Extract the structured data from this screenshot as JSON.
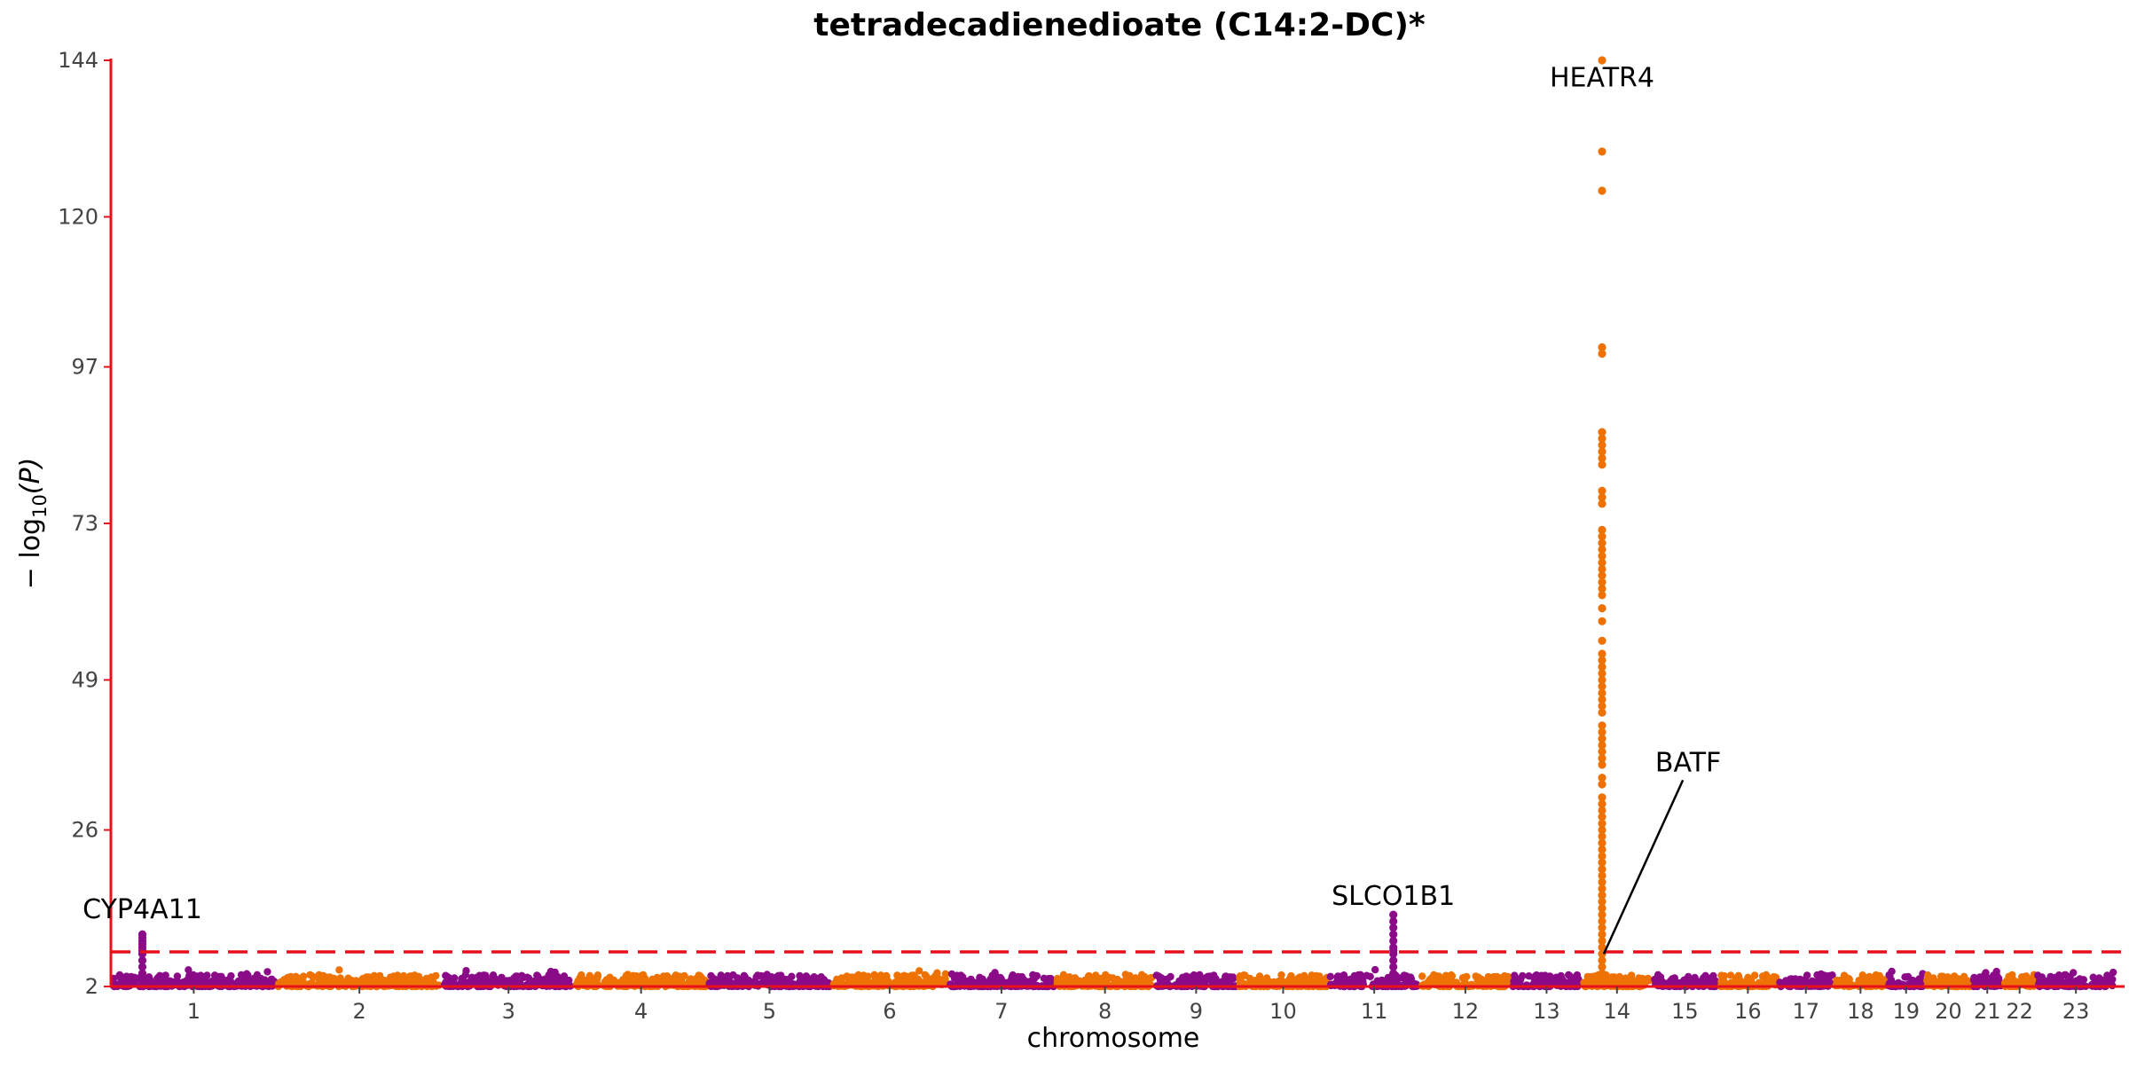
{
  "chart_data": {
    "type": "scatter",
    "subtype": "manhattan",
    "title": "tetradecadienedioate (C14:2-DC)*",
    "xlabel": "chromosome",
    "ylabel_main": "− log",
    "ylabel_sub": "10",
    "ylabel_tail": "(P)",
    "yticks": [
      2,
      26,
      49,
      73,
      97,
      120,
      144
    ],
    "ylim": [
      2,
      144
    ],
    "significance_threshold": 7.3,
    "grid": false,
    "legend": "none",
    "colors": {
      "odd_chromosome": "#8B0A88",
      "even_chromosome": "#EE7203",
      "axis_line": "#E8101A",
      "threshold_line": "#E8101A",
      "annotation_line": "#000000"
    },
    "chromosomes": [
      {
        "label": "1",
        "range": [
          0.0,
          1.0
        ]
      },
      {
        "label": "2",
        "range": [
          1.0,
          2.0
        ]
      },
      {
        "label": "3",
        "range": [
          2.0,
          2.8
        ]
      },
      {
        "label": "4",
        "range": [
          2.8,
          3.6
        ]
      },
      {
        "label": "5",
        "range": [
          3.6,
          4.35
        ]
      },
      {
        "label": "6",
        "range": [
          4.35,
          5.05
        ]
      },
      {
        "label": "7",
        "range": [
          5.05,
          5.7
        ]
      },
      {
        "label": "8",
        "range": [
          5.7,
          6.3
        ]
      },
      {
        "label": "9",
        "range": [
          6.3,
          6.8
        ]
      },
      {
        "label": "10",
        "range": [
          6.8,
          7.35
        ]
      },
      {
        "label": "11",
        "range": [
          7.35,
          7.9
        ]
      },
      {
        "label": "12",
        "range": [
          7.9,
          8.45
        ]
      },
      {
        "label": "13",
        "range": [
          8.45,
          8.88
        ]
      },
      {
        "label": "14",
        "range": [
          8.88,
          9.3
        ]
      },
      {
        "label": "15",
        "range": [
          9.3,
          9.7
        ]
      },
      {
        "label": "16",
        "range": [
          9.7,
          10.06
        ]
      },
      {
        "label": "17",
        "range": [
          10.06,
          10.4
        ]
      },
      {
        "label": "18",
        "range": [
          10.4,
          10.72
        ]
      },
      {
        "label": "19",
        "range": [
          10.72,
          10.95
        ]
      },
      {
        "label": "20",
        "range": [
          10.95,
          11.23
        ]
      },
      {
        "label": "21",
        "range": [
          11.23,
          11.42
        ]
      },
      {
        "label": "22",
        "range": [
          11.42,
          11.62
        ]
      },
      {
        "label": "23",
        "range": [
          11.62,
          12.1
        ]
      }
    ],
    "peaks": [
      {
        "chromosome": "1",
        "x": 0.19,
        "values": [
          3,
          4,
          5,
          6,
          7,
          7.5,
          8,
          8.5,
          9,
          9.5,
          10
        ]
      },
      {
        "chromosome": "11",
        "x": 7.74,
        "values": [
          3,
          4,
          5,
          6,
          7,
          7.5,
          8,
          9,
          10,
          11,
          12,
          13
        ]
      },
      {
        "chromosome": "14",
        "x": 9.0,
        "values": [
          3,
          4,
          5,
          6,
          7,
          8,
          9,
          10,
          11,
          12,
          13,
          14,
          15,
          16,
          17,
          18,
          19,
          20,
          21,
          22,
          23,
          24,
          25,
          26,
          27,
          28,
          29,
          30,
          31,
          33,
          34,
          36,
          37,
          38,
          39,
          40,
          41,
          42,
          44,
          45,
          46,
          47,
          48,
          49,
          50,
          51,
          52,
          53,
          55,
          58,
          60,
          62,
          63,
          64,
          65,
          66,
          67,
          68,
          69,
          70,
          71,
          72,
          76,
          77,
          78,
          82,
          83,
          84,
          85,
          86,
          87,
          99,
          100,
          124,
          130,
          144
        ]
      }
    ],
    "annotations": [
      {
        "text": "CYP4A11",
        "x": 0.19,
        "y": 12.5
      },
      {
        "text": "SLCO1B1",
        "x": 7.74,
        "y": 14.5
      },
      {
        "text": "HEATR4",
        "x": 9.0,
        "y": 140
      },
      {
        "text": "BATF",
        "x": 9.52,
        "y": 35,
        "pointer_to": {
          "x": 9.0,
          "y": 7
        }
      }
    ]
  }
}
